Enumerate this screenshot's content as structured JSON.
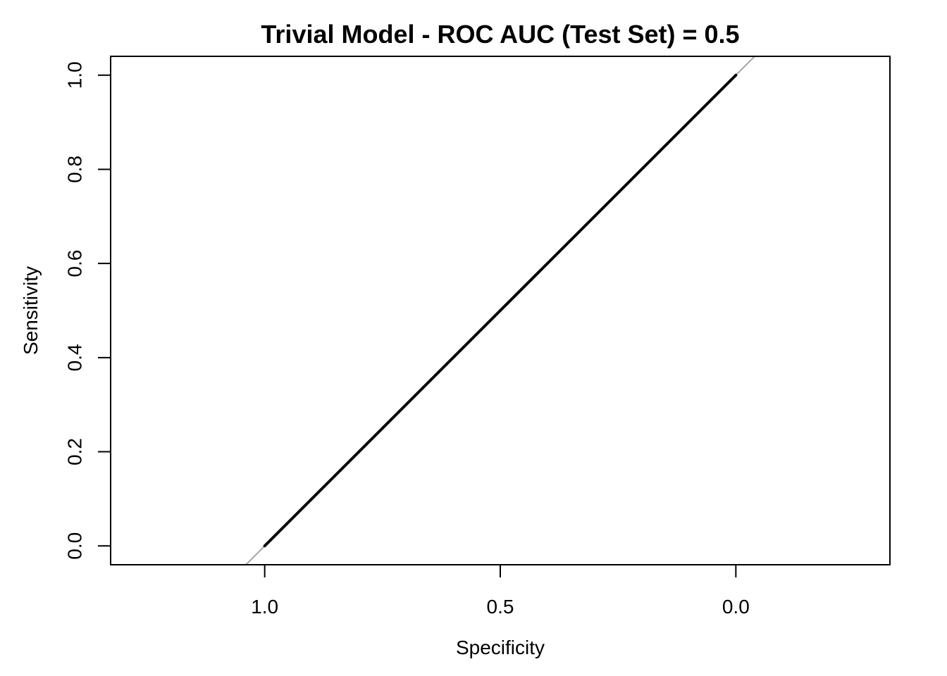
{
  "chart_data": {
    "type": "line",
    "title": "Trivial Model - ROC AUC (Test Set) = 0.5",
    "xlabel": "Specificity",
    "ylabel": "Sensitivity",
    "x_reversed": true,
    "xlim": [
      1.327,
      -0.327
    ],
    "ylim": [
      -0.04,
      1.04
    ],
    "x_ticks": [
      1.0,
      0.5,
      0.0
    ],
    "x_tick_labels": [
      "1.0",
      "0.5",
      "0.0"
    ],
    "y_ticks": [
      0.0,
      0.2,
      0.4,
      0.6,
      0.8,
      1.0
    ],
    "y_tick_labels": [
      "0.0",
      "0.2",
      "0.4",
      "0.6",
      "0.8",
      "1.0"
    ],
    "grid": false,
    "series": [
      {
        "x": [
          1.0,
          0.0
        ],
        "y": [
          0.0,
          1.0
        ],
        "color": "#000000"
      }
    ],
    "reference_line": {
      "description": "diagonal",
      "intercept": 1,
      "slope": -1,
      "color": "#a6a6a6"
    }
  }
}
